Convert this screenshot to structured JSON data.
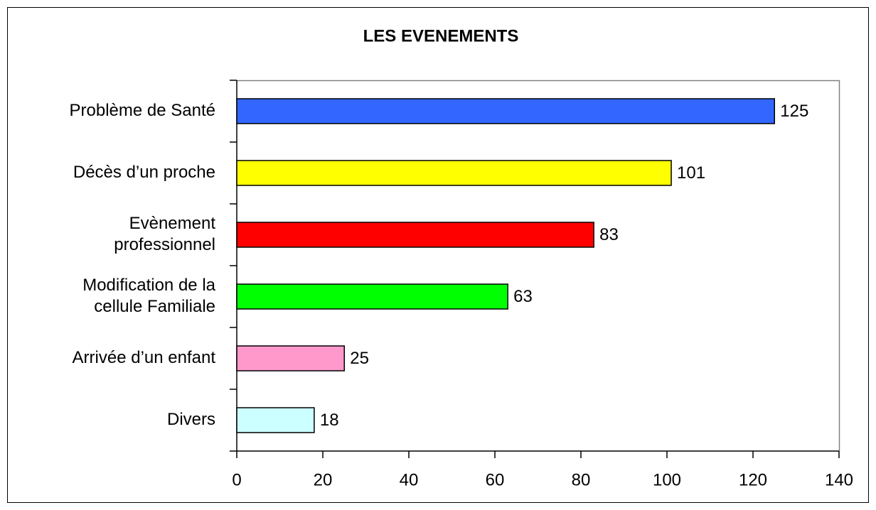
{
  "chart_data": {
    "type": "barh",
    "title": "LES EVENEMENTS",
    "categories": [
      [
        "Problème de Santé"
      ],
      [
        "Décès d’un proche"
      ],
      [
        "Evènement",
        "professionnel"
      ],
      [
        "Modification de la",
        "cellule Familiale"
      ],
      [
        "Arrivée d’un enfant"
      ],
      [
        "Divers"
      ]
    ],
    "values": [
      125,
      101,
      83,
      63,
      25,
      18
    ],
    "colors": [
      "#3366ff",
      "#ffff00",
      "#ff0000",
      "#00ff00",
      "#ff99cc",
      "#ccffff"
    ],
    "xlim": [
      0,
      140
    ],
    "xticks": [
      0,
      20,
      40,
      60,
      80,
      100,
      120,
      140
    ]
  }
}
